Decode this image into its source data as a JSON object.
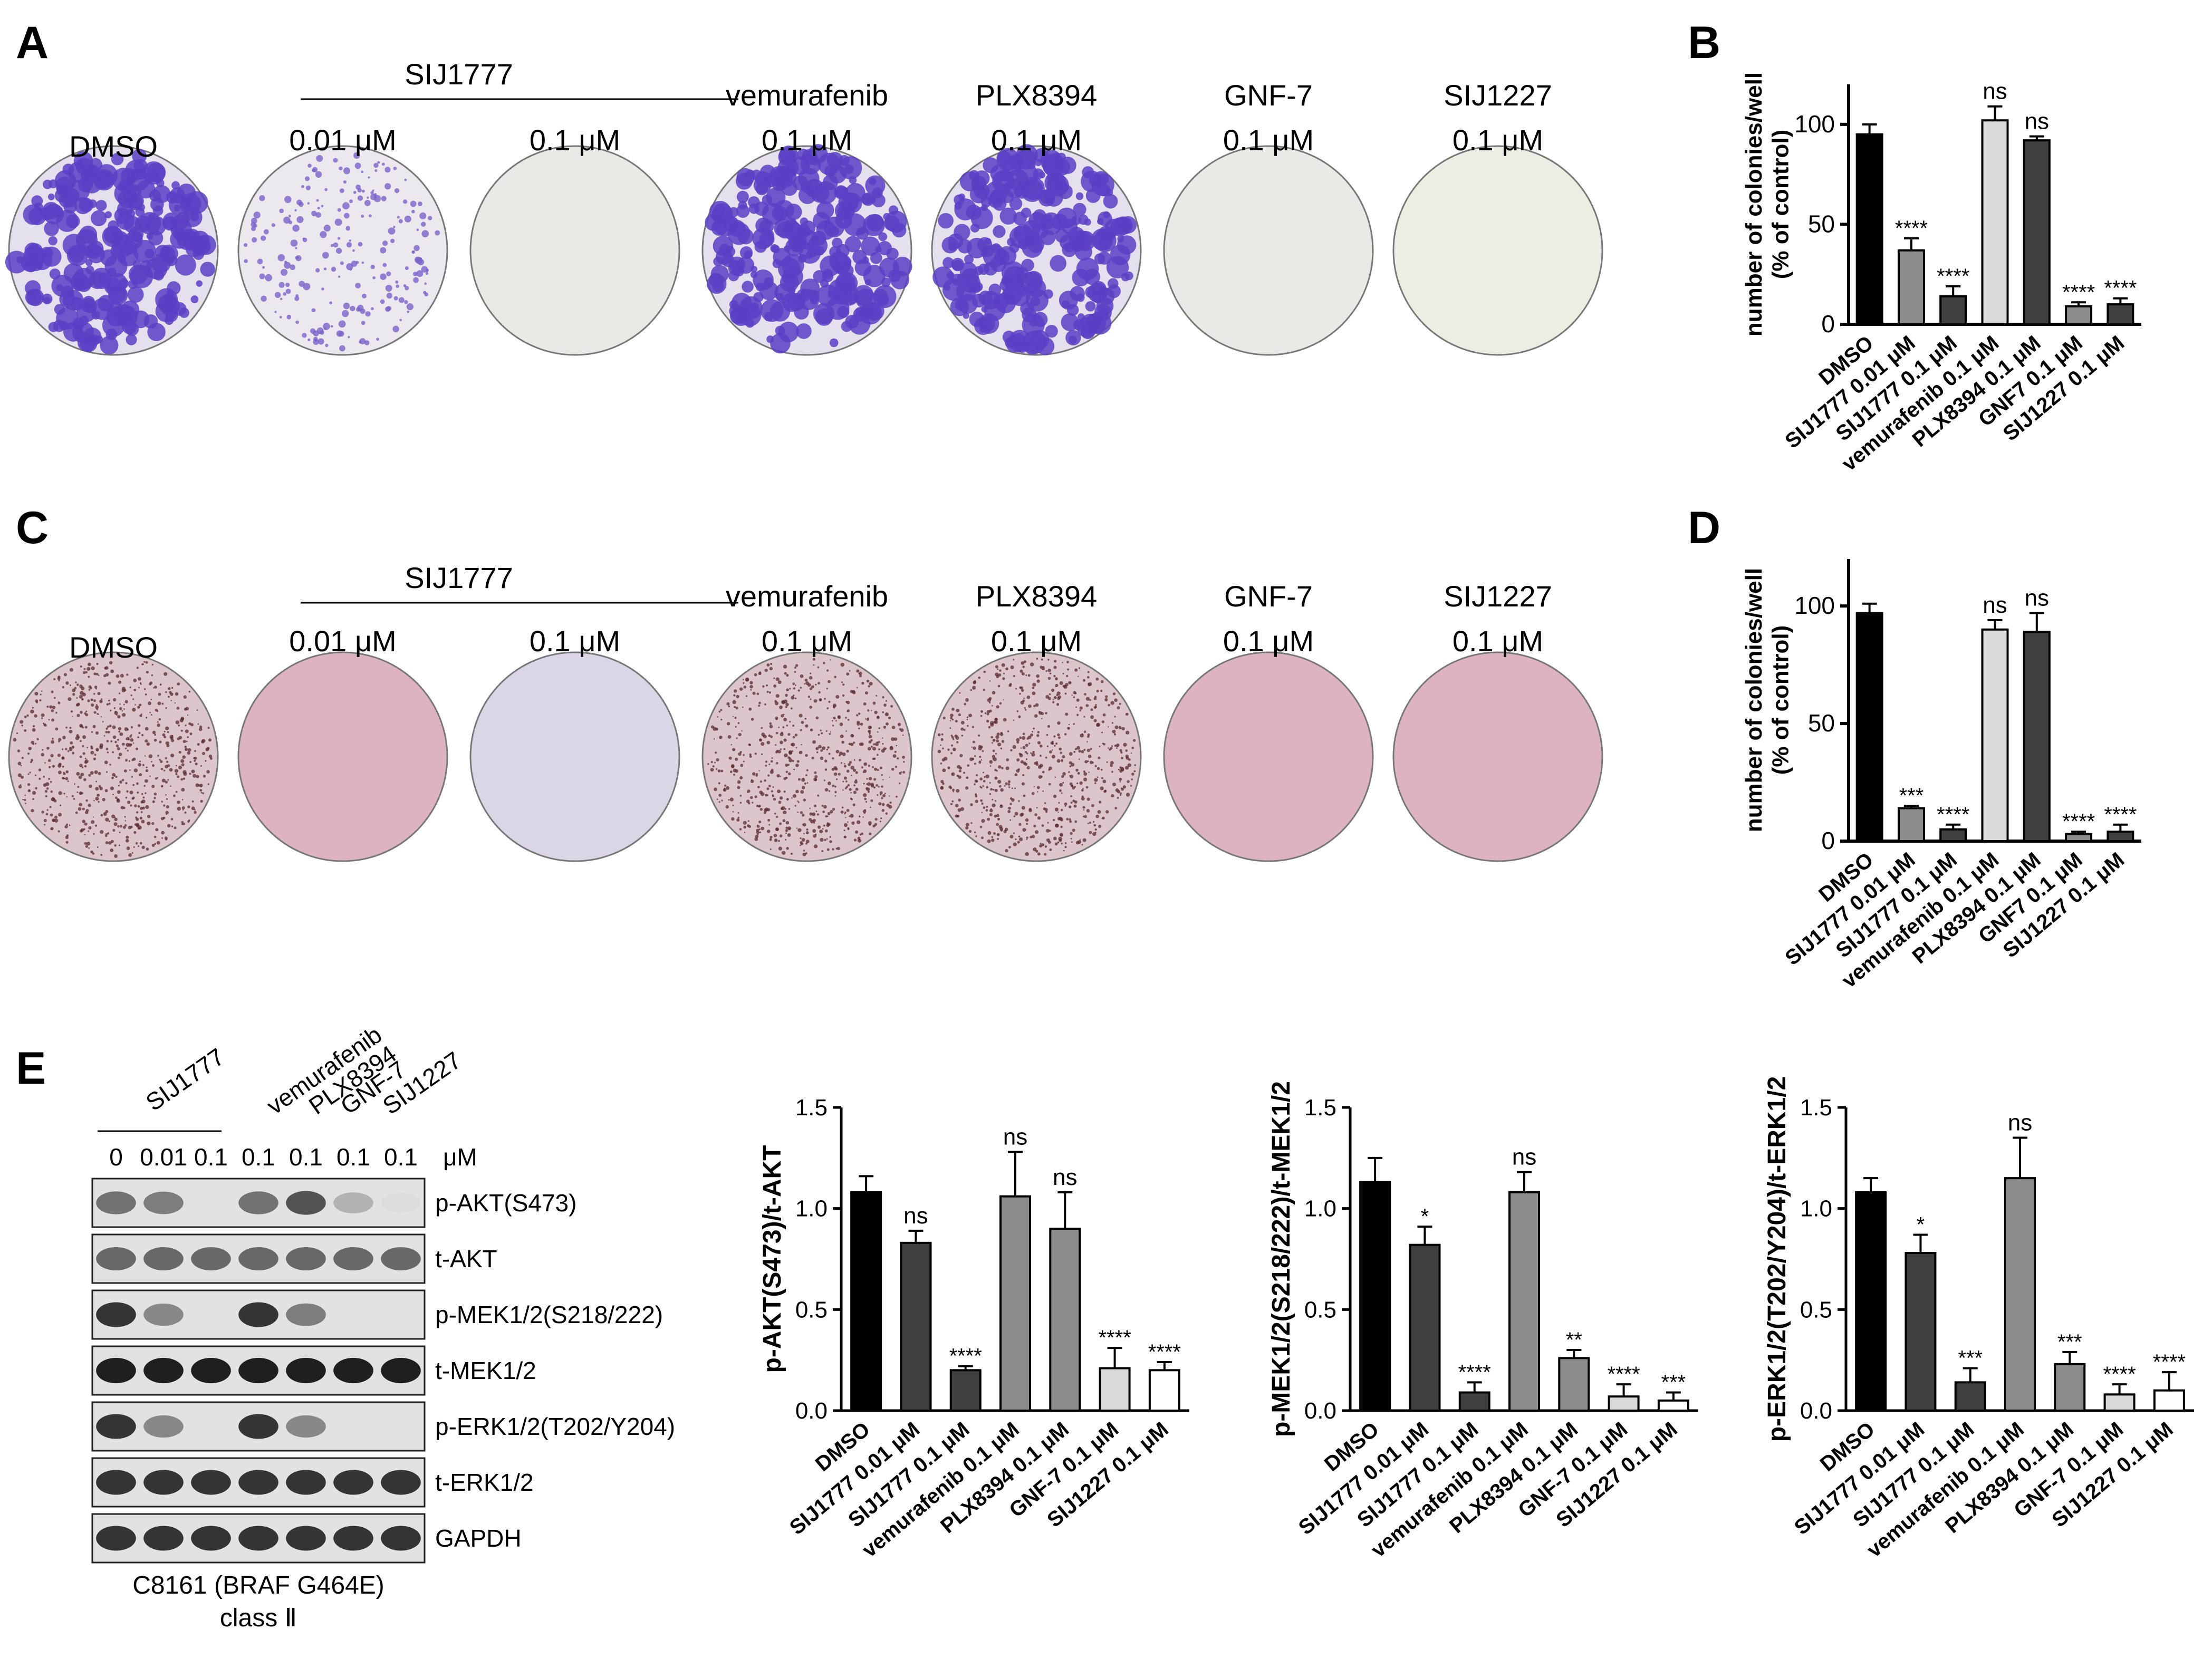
{
  "panel_labels": {
    "a": "A",
    "b": "B",
    "c": "C",
    "d": "D",
    "e": "E"
  },
  "row_a": {
    "dmso_label": "DMSO",
    "group_label": "SIJ1777",
    "items": [
      {
        "label": "",
        "conc": "",
        "style": "dense_purple"
      },
      {
        "label": "",
        "conc": "0.01 μM",
        "style": "sparse_purple"
      },
      {
        "label": "",
        "conc": "0.1 μM",
        "style": "empty_grey"
      },
      {
        "label": "vemurafenib",
        "conc": "0.1 μM",
        "style": "dense_purple"
      },
      {
        "label": "PLX8394",
        "conc": "0.1 μM",
        "style": "dense_purple"
      },
      {
        "label": "GNF-7",
        "conc": "0.1 μM",
        "style": "empty_grey"
      },
      {
        "label": "SIJ1227",
        "conc": "0.1 μM",
        "style": "empty_cream"
      }
    ]
  },
  "row_c": {
    "dmso_label": "DMSO",
    "group_label": "SIJ1777",
    "items": [
      {
        "label": "",
        "conc": "",
        "style": "speckled"
      },
      {
        "label": "",
        "conc": "0.01 μM",
        "style": "pink"
      },
      {
        "label": "",
        "conc": "0.1 μM",
        "style": "lavender"
      },
      {
        "label": "vemurafenib",
        "conc": "0.1 μM",
        "style": "speckled"
      },
      {
        "label": "PLX8394",
        "conc": "0.1 μM",
        "style": "speckled"
      },
      {
        "label": "GNF-7",
        "conc": "0.1 μM",
        "style": "pink"
      },
      {
        "label": "SIJ1227",
        "conc": "0.1 μM",
        "style": "pink"
      }
    ]
  },
  "western": {
    "lane_headers": [
      "vemurafenib",
      "PLX8394",
      "GNF-7",
      "SIJ1227"
    ],
    "group_header": "SIJ1777",
    "concentrations": [
      "0",
      "0.01",
      "0.1",
      "0.1",
      "0.1",
      "0.1",
      "0.1"
    ],
    "unit": "μM",
    "bands": [
      {
        "label": "p-AKT(S473)",
        "intensity": [
          0.55,
          0.5,
          0.0,
          0.55,
          0.7,
          0.25,
          0.05
        ]
      },
      {
        "label": "t-AKT",
        "intensity": [
          0.6,
          0.6,
          0.6,
          0.6,
          0.6,
          0.6,
          0.6
        ]
      },
      {
        "label": "p-MEK1/2(S218/222)",
        "intensity": [
          0.85,
          0.45,
          0.0,
          0.85,
          0.5,
          0.0,
          0.0
        ]
      },
      {
        "label": "t-MEK1/2",
        "intensity": [
          0.95,
          0.95,
          0.95,
          0.95,
          0.95,
          0.95,
          0.95
        ]
      },
      {
        "label": "p-ERK1/2(T202/Y204)",
        "intensity": [
          0.85,
          0.45,
          0.0,
          0.85,
          0.45,
          0.0,
          0.0
        ]
      },
      {
        "label": "t-ERK1/2",
        "intensity": [
          0.85,
          0.85,
          0.85,
          0.85,
          0.85,
          0.85,
          0.85
        ]
      },
      {
        "label": "GAPDH",
        "intensity": [
          0.85,
          0.85,
          0.85,
          0.85,
          0.85,
          0.85,
          0.85
        ]
      }
    ],
    "caption_line1": "C8161 (BRAF G464E)",
    "caption_line2": "class Ⅱ"
  },
  "colors": {
    "black": "#000000",
    "dark_grey": "#3f3f3f",
    "mid_grey": "#8c8c8c",
    "light_grey": "#d9d9d9",
    "purple_dark": "#5b3fc4",
    "purple_bg": "#e4e0ee",
    "plate_grey": "#e9e9e6",
    "plate_cream": "#eceee4",
    "pink": "#ddb3c2",
    "lavender": "#dad6e6",
    "speckle_bg": "#dcc6cb",
    "speckle_dot": "#5a2a30"
  },
  "chart_data": [
    {
      "id": "B",
      "type": "bar",
      "ylabel": "number of colonies/well\n(% of control)",
      "ylim": [
        0,
        120
      ],
      "yticks": [
        0,
        50,
        100
      ],
      "categories": [
        "DMSO",
        "SIJ1777 0.01 μM",
        "SIJ1777 0.1 μM",
        "vemurafenib 0.1 μM",
        "PLX8394 0.1 μM",
        "GNF7 0.1 μM",
        "SIJ1227 0.1 μM"
      ],
      "values": [
        95,
        37,
        14,
        102,
        92,
        9,
        10
      ],
      "errors": [
        5,
        6,
        5,
        7,
        2,
        2,
        3
      ],
      "annotations": [
        "",
        "****",
        "****",
        "ns",
        "ns",
        "****",
        "****"
      ],
      "fills": [
        "black",
        "mid_grey",
        "dark_grey",
        "light_grey",
        "dark_grey",
        "mid_grey",
        "dark_grey"
      ]
    },
    {
      "id": "D",
      "type": "bar",
      "ylabel": "number of colonies/well\n(% of control)",
      "ylim": [
        0,
        120
      ],
      "yticks": [
        0,
        50,
        100
      ],
      "categories": [
        "DMSO",
        "SIJ1777 0.01 μM",
        "SIJ1777 0.1 μM",
        "vemurafenib 0.1 μM",
        "PLX8394 0.1 μM",
        "GNF7 0.1 μM",
        "SIJ1227 0.1 μM"
      ],
      "values": [
        97,
        14,
        5,
        90,
        89,
        3,
        4
      ],
      "errors": [
        4,
        1,
        2,
        4,
        8,
        1,
        3
      ],
      "annotations": [
        "",
        "***",
        "****",
        "ns",
        "ns",
        "****",
        "****"
      ],
      "fills": [
        "black",
        "mid_grey",
        "dark_grey",
        "light_grey",
        "dark_grey",
        "mid_grey",
        "dark_grey"
      ]
    },
    {
      "id": "E1",
      "type": "bar",
      "ylabel": "p-AKT(S473)/t-AKT",
      "ylim": [
        0,
        1.5
      ],
      "yticks": [
        0.0,
        0.5,
        1.0,
        1.5
      ],
      "categories": [
        "DMSO",
        "SIJ1777 0.01 μM",
        "SIJ1777 0.1 μM",
        "vemurafenib 0.1 μM",
        "PLX8394 0.1 μM",
        "GNF-7 0.1 μM",
        "SIJ1227 0.1 μM"
      ],
      "values": [
        1.08,
        0.83,
        0.2,
        1.06,
        0.9,
        0.21,
        0.2
      ],
      "errors": [
        0.08,
        0.06,
        0.02,
        0.22,
        0.18,
        0.1,
        0.04
      ],
      "annotations": [
        "",
        "ns",
        "****",
        "ns",
        "ns",
        "****",
        "****"
      ],
      "fills": [
        "black",
        "dark_grey",
        "dark_grey",
        "mid_grey",
        "mid_grey",
        "light_grey",
        "white"
      ]
    },
    {
      "id": "E2",
      "type": "bar",
      "ylabel": "p-MEK1/2(S218/222)/t-MEK1/2",
      "ylim": [
        0,
        1.5
      ],
      "yticks": [
        0.0,
        0.5,
        1.0,
        1.5
      ],
      "categories": [
        "DMSO",
        "SIJ1777 0.01 μM",
        "SIJ1777 0.1 μM",
        "vemurafenib 0.1 μM",
        "PLX8394 0.1 μM",
        "GNF-7 0.1 μM",
        "SIJ1227 0.1 μM"
      ],
      "values": [
        1.13,
        0.82,
        0.09,
        1.08,
        0.26,
        0.07,
        0.05
      ],
      "errors": [
        0.12,
        0.09,
        0.05,
        0.1,
        0.04,
        0.06,
        0.04
      ],
      "annotations": [
        "",
        "*",
        "****",
        "ns",
        "**",
        "****",
        "***"
      ],
      "fills": [
        "black",
        "dark_grey",
        "dark_grey",
        "mid_grey",
        "mid_grey",
        "light_grey",
        "white"
      ]
    },
    {
      "id": "E3",
      "type": "bar",
      "ylabel": "p-ERK1/2(T202/Y204)/t-ERK1/2",
      "ylim": [
        0,
        1.5
      ],
      "yticks": [
        0.0,
        0.5,
        1.0,
        1.5
      ],
      "categories": [
        "DMSO",
        "SIJ1777 0.01 μM",
        "SIJ1777 0.1 μM",
        "vemurafenib 0.1 μM",
        "PLX8394 0.1 μM",
        "GNF-7 0.1 μM",
        "SIJ1227 0.1 μM"
      ],
      "values": [
        1.08,
        0.78,
        0.14,
        1.15,
        0.23,
        0.08,
        0.1
      ],
      "errors": [
        0.07,
        0.09,
        0.07,
        0.2,
        0.06,
        0.05,
        0.09
      ],
      "annotations": [
        "",
        "*",
        "***",
        "ns",
        "***",
        "****",
        "****"
      ],
      "fills": [
        "black",
        "dark_grey",
        "dark_grey",
        "mid_grey",
        "mid_grey",
        "light_grey",
        "white"
      ]
    }
  ]
}
